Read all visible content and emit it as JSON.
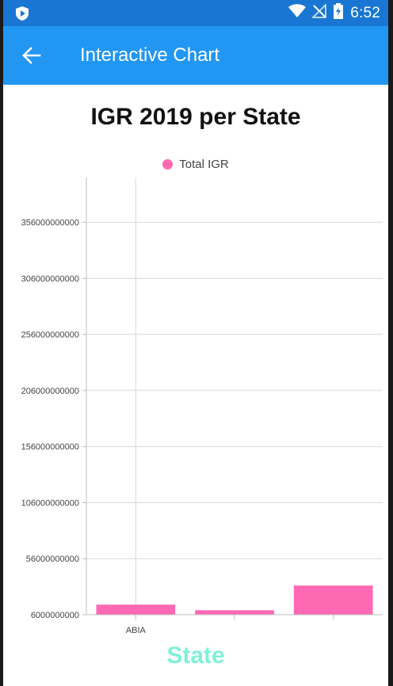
{
  "status_bar": {
    "time": "6:52",
    "icons": [
      "shield-icon",
      "wifi-icon",
      "no-signal-icon",
      "battery-charging-icon"
    ]
  },
  "app_bar": {
    "title": "Interactive Chart",
    "back_icon": "arrow-left-icon"
  },
  "chart_data": {
    "type": "bar",
    "title": "IGR 2019 per State",
    "xlabel": "State",
    "ylabel": "",
    "categories": [
      "ABIA",
      "",
      ""
    ],
    "series": [
      {
        "name": "Total IGR",
        "values": [
          15000000000,
          10000000000,
          32000000000
        ]
      }
    ],
    "ylim": [
      6000000000,
      396000000000
    ],
    "yticks": [
      6000000000,
      56000000000,
      106000000000,
      156000000000,
      206000000000,
      256000000000,
      306000000000,
      356000000000
    ],
    "ytick_labels": [
      "6000000000",
      "56000000000",
      "106000000000",
      "156000000000",
      "206000000000",
      "256000000000",
      "306000000000",
      "356000000000"
    ],
    "grid": true,
    "legend_position": "top-center",
    "colors": {
      "bar": "#ff69b4",
      "legend": "#ff69b4",
      "xlabel": "#80f0d8"
    }
  }
}
